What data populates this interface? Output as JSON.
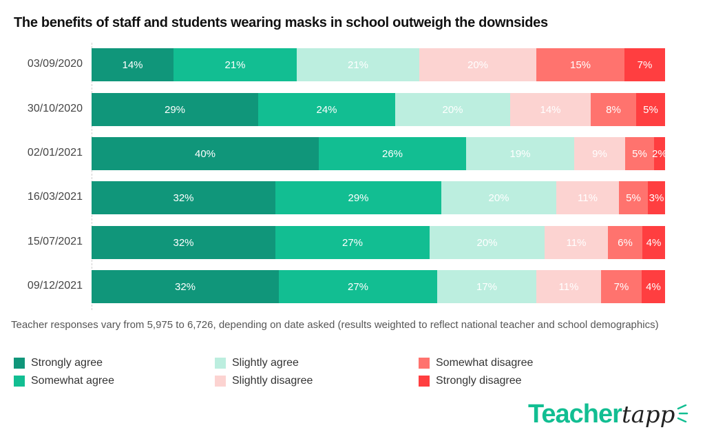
{
  "chart_data": {
    "type": "bar",
    "orientation": "horizontal",
    "stacked": true,
    "normalized": true,
    "title": "The benefits of staff and students wearing masks in school outweigh the downsides",
    "xlabel": "",
    "ylabel": "",
    "categories": [
      "03/09/2020",
      "30/10/2020",
      "02/01/2021",
      "16/03/2021",
      "15/07/2021",
      "09/12/2021"
    ],
    "series": [
      {
        "name": "Strongly agree",
        "color": "#10967A",
        "values": [
          14,
          29,
          40,
          32,
          32,
          32
        ]
      },
      {
        "name": "Somewhat agree",
        "color": "#12BE92",
        "values": [
          21,
          24,
          26,
          29,
          27,
          27
        ]
      },
      {
        "name": "Slightly agree",
        "color": "#BCEEDF",
        "values": [
          21,
          20,
          19,
          20,
          20,
          17
        ]
      },
      {
        "name": "Slightly disagree",
        "color": "#FCD3D1",
        "values": [
          20,
          14,
          9,
          11,
          11,
          11
        ]
      },
      {
        "name": "Somewhat disagree",
        "color": "#FF736E",
        "values": [
          15,
          8,
          5,
          5,
          6,
          7
        ]
      },
      {
        "name": "Strongly disagree",
        "color": "#FF3E40",
        "values": [
          7,
          5,
          2,
          3,
          4,
          4
        ]
      }
    ],
    "data_labels": "percent",
    "grid": false,
    "legend_position": "bottom"
  },
  "footnote": "Teacher responses vary from 5,975 to 6,726, depending on date asked (results weighted to reflect national teacher and school demographics)",
  "legend": [
    {
      "label": "Strongly agree",
      "color": "#10967A"
    },
    {
      "label": "Somewhat agree",
      "color": "#12BE92"
    },
    {
      "label": "Slightly agree",
      "color": "#BCEEDF"
    },
    {
      "label": "Slightly disagree",
      "color": "#FCD3D1"
    },
    {
      "label": "Somewhat disagree",
      "color": "#FF736E"
    },
    {
      "label": "Strongly disagree",
      "color": "#FF3E40"
    }
  ],
  "logo": {
    "part1": "Teacher",
    "part2": "tapp",
    "rays": "⋮"
  }
}
